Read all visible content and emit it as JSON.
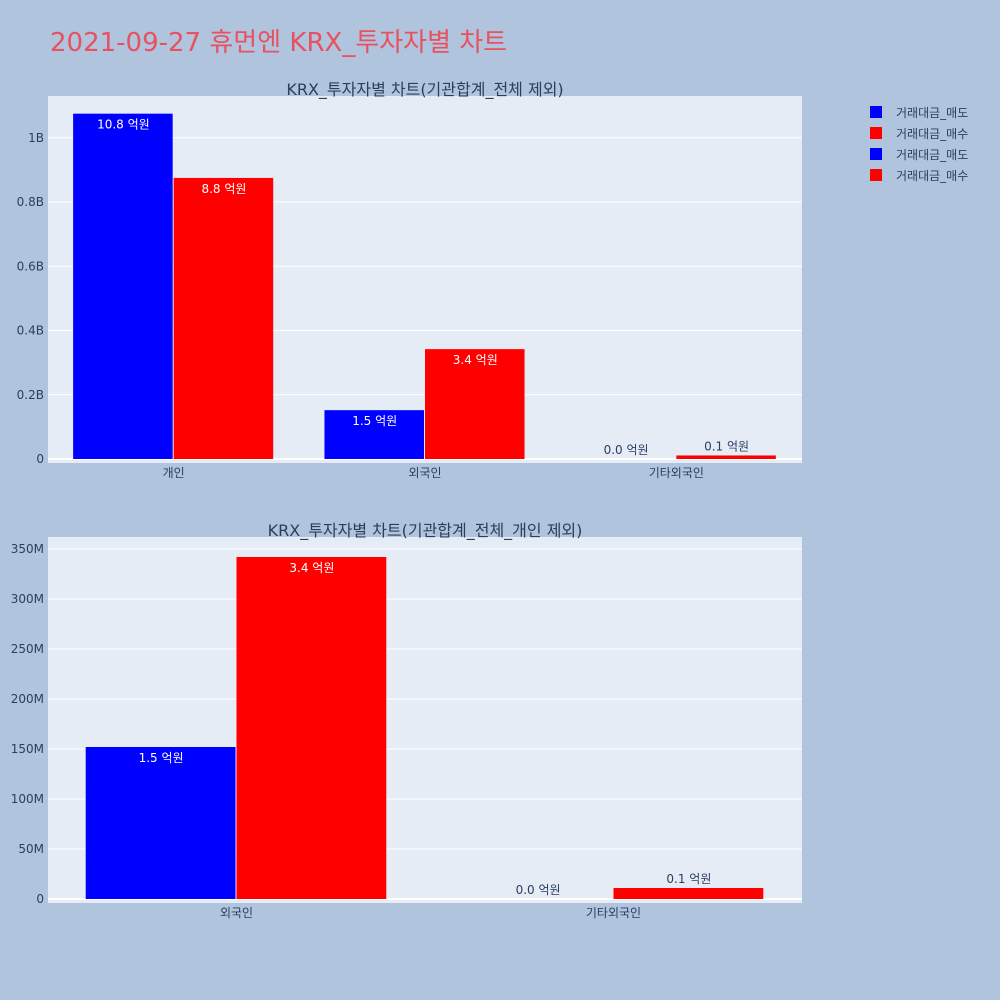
{
  "page": {
    "title": "2021-09-27 휴먼엔 KRX_투자자별 차트"
  },
  "legend": {
    "items": [
      {
        "label": "거래대금_매도",
        "color": "#0000ff"
      },
      {
        "label": "거래대금_매수",
        "color": "#ff0000"
      },
      {
        "label": "거래대금_매도",
        "color": "#0000ff"
      },
      {
        "label": "거래대금_매수",
        "color": "#ff0000"
      }
    ]
  },
  "chart_data": [
    {
      "type": "bar",
      "title": "KRX_투자자별 차트(기관합계_전체 제외)",
      "categories": [
        "개인",
        "외국인",
        "기타외국인"
      ],
      "series": [
        {
          "name": "거래대금_매도",
          "color": "#0000ff",
          "values": [
            1075000000,
            152000000,
            0
          ],
          "labels": [
            "10.8 억원",
            "1.5 억원",
            "0.0 억원"
          ]
        },
        {
          "name": "거래대금_매수",
          "color": "#ff0000",
          "values": [
            875000000,
            342000000,
            11000000
          ],
          "labels": [
            "8.8 억원",
            "3.4 억원",
            "0.1 억원"
          ]
        }
      ],
      "ylim": [
        0,
        1130000000
      ],
      "yticks": [
        0,
        200000000,
        400000000,
        600000000,
        800000000,
        1000000000
      ],
      "ytick_labels": [
        "0",
        "0.2B",
        "0.4B",
        "0.6B",
        "0.8B",
        "1B"
      ],
      "grid": true
    },
    {
      "type": "bar",
      "title": "KRX_투자자별 차트(기관합계_전체_개인 제외)",
      "categories": [
        "외국인",
        "기타외국인"
      ],
      "series": [
        {
          "name": "거래대금_매도",
          "color": "#0000ff",
          "values": [
            152000000,
            0
          ],
          "labels": [
            "1.5 억원",
            "0.0 억원"
          ]
        },
        {
          "name": "거래대금_매수",
          "color": "#ff0000",
          "values": [
            342000000,
            11000000
          ],
          "labels": [
            "3.4 억원",
            "0.1 억원"
          ]
        }
      ],
      "ylim": [
        0,
        362000000
      ],
      "yticks": [
        0,
        50000000,
        100000000,
        150000000,
        200000000,
        250000000,
        300000000,
        350000000
      ],
      "ytick_labels": [
        "0",
        "50M",
        "100M",
        "150M",
        "200M",
        "250M",
        "300M",
        "350M"
      ],
      "grid": true
    }
  ]
}
